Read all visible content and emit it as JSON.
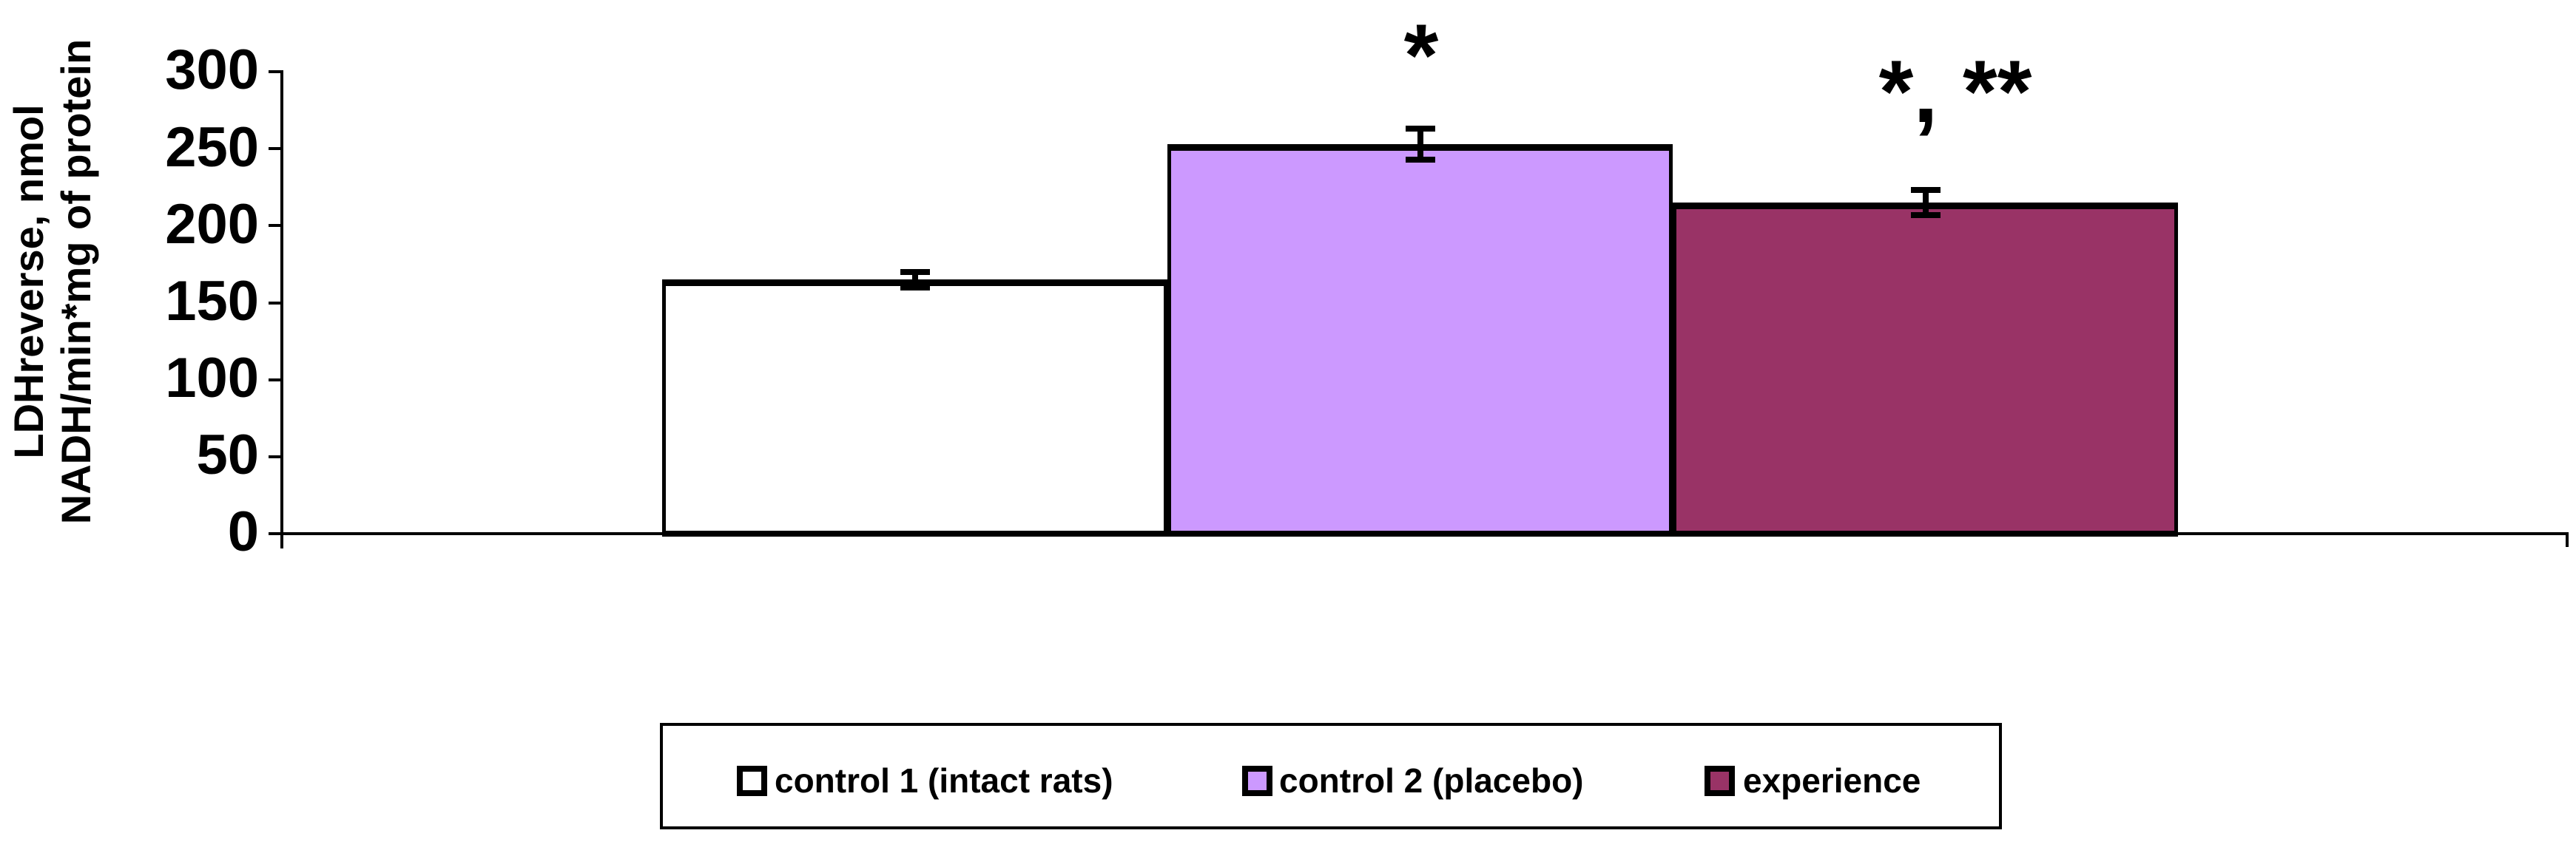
{
  "chart_data": {
    "type": "bar",
    "title": "",
    "ylabel_lines": [
      "LDHreverse, nmol",
      "NADH/min*mg of protein"
    ],
    "ylabel": "LDHreverse, nmol NADH/min*mg of protein",
    "xlabel": "",
    "categories": [
      "control 1 (intact rats)",
      "control 2 (placebo)",
      "experience"
    ],
    "values": [
      165,
      253,
      215
    ],
    "errors": [
      5,
      10,
      8
    ],
    "units": "nmol NADH/min*mg of protein",
    "bar_colors": [
      "#FFFFFF",
      "#CC99FF",
      "#993366"
    ],
    "bar_border_color": "#000000",
    "axis_color": "#000000",
    "ylim": [
      0,
      300
    ],
    "yticks": [
      0,
      50,
      100,
      150,
      200,
      250,
      300
    ],
    "grid": false,
    "legend_position": "bottom",
    "legend": [
      {
        "label": "control 1 (intact rats)",
        "color": "#FFFFFF"
      },
      {
        "label": "control 2 (placebo)",
        "color": "#CC99FF"
      },
      {
        "label": "experience",
        "color": "#993366"
      }
    ],
    "annotations": [
      {
        "text": "*",
        "category": "control 2 (placebo)"
      },
      {
        "text": "*, **",
        "category": "experience"
      }
    ]
  }
}
